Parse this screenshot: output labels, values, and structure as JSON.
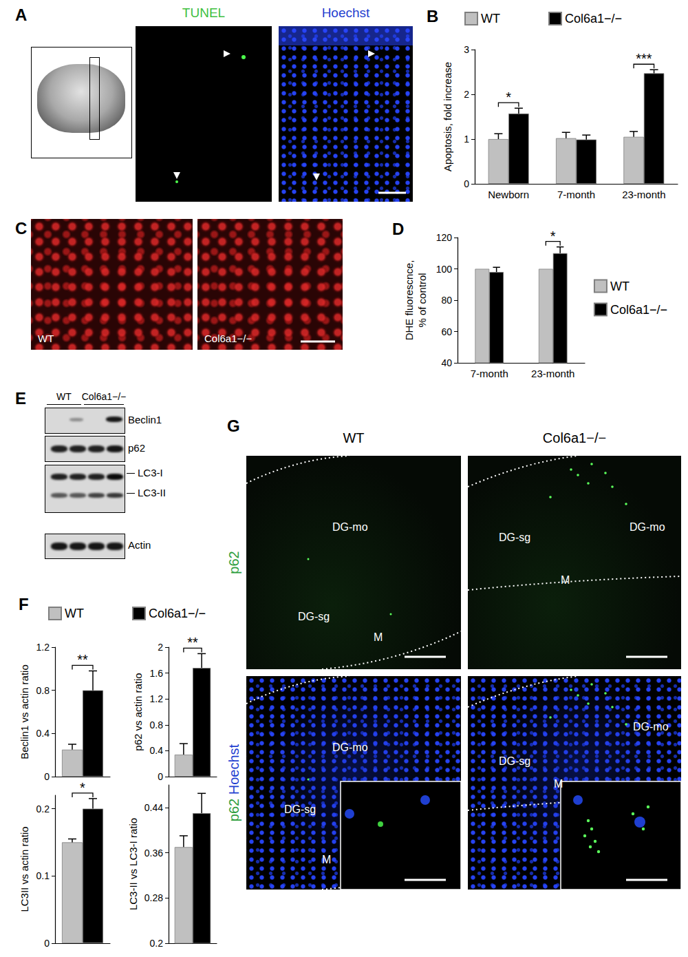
{
  "panels": {
    "A": {
      "label": "A",
      "stains": [
        "TUNEL",
        "Hoechst"
      ]
    },
    "C": {
      "label": "C",
      "images": [
        "WT",
        "Col6a1−/−"
      ]
    },
    "E": {
      "label": "E",
      "columns": [
        "WT",
        "Col6a1−/−"
      ],
      "bands": [
        "Beclin1",
        "p62",
        "LC3-I",
        "LC3-II",
        "Actin"
      ]
    },
    "G": {
      "label": "G",
      "columns": [
        "WT",
        "Col6a1−/−"
      ],
      "rows": [
        [
          "p62"
        ],
        [
          "p62",
          "Hoechst"
        ]
      ],
      "regions": [
        "DG-mo",
        "DG-sg",
        "M"
      ]
    }
  },
  "chart_data": [
    {
      "type": "bar",
      "title": "B",
      "y_label": "Apoptosis, fold increase",
      "categories": [
        "Newborn",
        "7-month",
        "23-month"
      ],
      "series": [
        {
          "name": "WT",
          "color": "#c0c0c0",
          "values": [
            1.0,
            1.02,
            1.05
          ],
          "errors": [
            0.12,
            0.13,
            0.12
          ]
        },
        {
          "name": "Col6a1−/−",
          "color": "#000000",
          "values": [
            1.57,
            0.99,
            2.47
          ],
          "errors": [
            0.12,
            0.1,
            0.08
          ]
        }
      ],
      "ylim": [
        0,
        3
      ],
      "yticks": [
        0,
        1,
        2,
        3
      ],
      "grid": false,
      "legend": "top",
      "annotations": [
        {
          "category": "Newborn",
          "text": "*"
        },
        {
          "category": "23-month",
          "text": "***"
        }
      ]
    },
    {
      "type": "bar",
      "title": "D",
      "y_label": "DHE fluorescnce,\n% of control",
      "categories": [
        "7-month",
        "23-month"
      ],
      "series": [
        {
          "name": "WT",
          "color": "#c0c0c0",
          "values": [
            100,
            100
          ]
        },
        {
          "name": "Col6a1−/−",
          "color": "#000000",
          "values": [
            98,
            110
          ],
          "errors": [
            3,
            4
          ]
        }
      ],
      "ylim": [
        40,
        120
      ],
      "yticks": [
        40,
        60,
        80,
        100,
        120
      ],
      "grid": false,
      "legend": "right",
      "annotations": [
        {
          "category": "23-month",
          "text": "*"
        }
      ]
    },
    {
      "type": "bar",
      "title": "F",
      "y_label": "Beclin1 vs actin ratio",
      "categories": [
        null
      ],
      "series": [
        {
          "name": "WT",
          "color": "#c0c0c0",
          "values": [
            0.25
          ],
          "errors": [
            0.05
          ]
        },
        {
          "name": "Col6a1−/−",
          "color": "#000000",
          "values": [
            0.8
          ],
          "errors": [
            0.18
          ]
        }
      ],
      "ylim": [
        0,
        1.2
      ],
      "yticks": [
        0,
        0.4,
        0.8,
        1.2
      ],
      "grid": false,
      "legend": "top",
      "tick_labels": "y",
      "annotations": [
        {
          "category": null,
          "text": "**"
        }
      ]
    },
    {
      "type": "bar",
      "y_label": "p62 vs actin ratio",
      "categories": [
        null
      ],
      "series": [
        {
          "name": "WT",
          "color": "#c0c0c0",
          "values": [
            0.34
          ],
          "errors": [
            0.17
          ]
        },
        {
          "name": "Col6a1−/−",
          "color": "#000000",
          "values": [
            1.68
          ],
          "errors": [
            0.22
          ]
        }
      ],
      "ylim": [
        0,
        2
      ],
      "yticks": [
        0,
        0.4,
        0.8,
        1.2,
        1.6,
        2
      ],
      "grid": false,
      "tick_labels": "y",
      "annotations": [
        {
          "category": null,
          "text": "**"
        }
      ]
    },
    {
      "type": "bar",
      "y_label": "LC3II vs actin ratio",
      "categories": [
        null
      ],
      "series": [
        {
          "name": "WT",
          "color": "#c0c0c0",
          "values": [
            0.15
          ],
          "errors": [
            0.005
          ]
        },
        {
          "name": "Col6a1−/−",
          "color": "#000000",
          "values": [
            0.2
          ],
          "errors": [
            0.015
          ]
        }
      ],
      "ylim": [
        0,
        0.22
      ],
      "yticks": [
        0,
        0.1,
        0.2
      ],
      "grid": false,
      "tick_labels": "y",
      "annotations": [
        {
          "category": null,
          "text": "*"
        }
      ]
    },
    {
      "type": "bar",
      "y_label": "LC3-II vs LC3-I ratio",
      "categories": [
        null
      ],
      "series": [
        {
          "name": "WT",
          "color": "#c0c0c0",
          "values": [
            0.37
          ],
          "errors": [
            0.02
          ]
        },
        {
          "name": "Col6a1−/−",
          "color": "#000000",
          "values": [
            0.43
          ],
          "errors": [
            0.035
          ]
        }
      ],
      "ylim": [
        0.2,
        0.48
      ],
      "yticks": [
        0.2,
        0.28,
        0.36,
        0.44
      ],
      "grid": false,
      "tick_labels": "y"
    }
  ]
}
